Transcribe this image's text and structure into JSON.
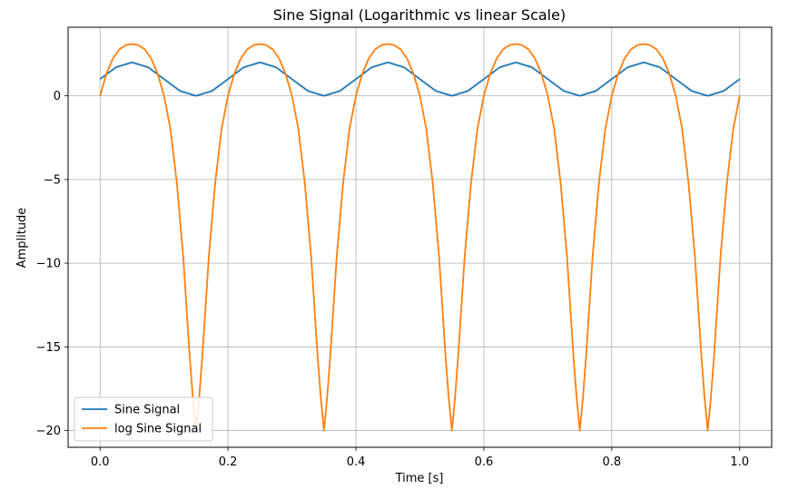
{
  "chart_data": {
    "type": "line",
    "title": "Sine Signal (Logarithmic vs linear Scale)",
    "xlabel": "Time [s]",
    "ylabel": "Amplitude",
    "xlim": [
      -0.05,
      1.05
    ],
    "ylim": [
      -21,
      4.1
    ],
    "xticks": [
      0.0,
      0.2,
      0.4,
      0.6,
      0.8,
      1.0
    ],
    "xtick_labels": [
      "0.0",
      "0.2",
      "0.4",
      "0.6",
      "0.8",
      "1.0"
    ],
    "yticks": [
      0,
      -5,
      -10,
      -15,
      -20
    ],
    "ytick_labels": [
      "0",
      "−5",
      "−10",
      "−15",
      "−20"
    ],
    "grid": true,
    "legend": {
      "position": "lower-left",
      "entries": [
        "Sine Signal",
        "log Sine Signal"
      ]
    },
    "series": [
      {
        "name": "Sine Signal",
        "color": "#1f77b4",
        "x": [
          0.0,
          0.025,
          0.05,
          0.075,
          0.1,
          0.125,
          0.15,
          0.175,
          0.2,
          0.225,
          0.25,
          0.275,
          0.3,
          0.325,
          0.35,
          0.375,
          0.4,
          0.425,
          0.45,
          0.475,
          0.5,
          0.525,
          0.55,
          0.575,
          0.6,
          0.625,
          0.65,
          0.675,
          0.7,
          0.725,
          0.75,
          0.775,
          0.8,
          0.825,
          0.85,
          0.875,
          0.9,
          0.925,
          0.95,
          0.975,
          1.0
        ],
        "y": [
          1.0,
          1.71,
          2.0,
          1.71,
          1.0,
          0.29,
          0.0,
          0.29,
          1.0,
          1.71,
          2.0,
          1.71,
          1.0,
          0.29,
          0.0,
          0.29,
          1.0,
          1.71,
          2.0,
          1.71,
          1.0,
          0.29,
          0.0,
          0.29,
          1.0,
          1.71,
          2.0,
          1.71,
          1.0,
          0.29,
          0.0,
          0.29,
          1.0,
          1.71,
          2.0,
          1.71,
          1.0,
          0.29,
          0.0,
          0.29,
          1.0
        ]
      },
      {
        "name": "log Sine Signal",
        "color": "#ff7f0e",
        "x": [
          0.0,
          0.01,
          0.02,
          0.03,
          0.04,
          0.05,
          0.06,
          0.07,
          0.08,
          0.09,
          0.1,
          0.11,
          0.12,
          0.13,
          0.14,
          0.145,
          0.15,
          0.155,
          0.16,
          0.17,
          0.18,
          0.19,
          0.2,
          0.21,
          0.22,
          0.23,
          0.24,
          0.25,
          0.26,
          0.27,
          0.28,
          0.29,
          0.3,
          0.31,
          0.32,
          0.33,
          0.34,
          0.345,
          0.35,
          0.355,
          0.36,
          0.37,
          0.38,
          0.39,
          0.4,
          0.41,
          0.42,
          0.43,
          0.44,
          0.45,
          0.46,
          0.47,
          0.48,
          0.49,
          0.5,
          0.51,
          0.52,
          0.53,
          0.54,
          0.545,
          0.55,
          0.555,
          0.56,
          0.57,
          0.58,
          0.59,
          0.6,
          0.61,
          0.62,
          0.63,
          0.64,
          0.65,
          0.66,
          0.67,
          0.68,
          0.69,
          0.7,
          0.71,
          0.72,
          0.73,
          0.74,
          0.745,
          0.75,
          0.755,
          0.76,
          0.77,
          0.78,
          0.79,
          0.8,
          0.81,
          0.82,
          0.83,
          0.84,
          0.85,
          0.86,
          0.87,
          0.88,
          0.89,
          0.9,
          0.91,
          0.92,
          0.93,
          0.94,
          0.945,
          0.95,
          0.955,
          0.96,
          0.97,
          0.98,
          0.99,
          1.0
        ],
        "y": [
          0.0,
          1.32,
          2.23,
          2.77,
          3.03,
          3.1,
          3.03,
          2.77,
          2.23,
          1.32,
          0.0,
          -1.97,
          -5.19,
          -9.61,
          -15.5,
          -18.0,
          -20.0,
          -18.0,
          -15.5,
          -9.61,
          -5.19,
          -1.97,
          0.0,
          1.32,
          2.23,
          2.77,
          3.03,
          3.1,
          3.03,
          2.77,
          2.23,
          1.32,
          0.0,
          -1.97,
          -5.19,
          -9.61,
          -15.5,
          -18.0,
          -20.0,
          -18.0,
          -15.5,
          -9.61,
          -5.19,
          -1.97,
          0.0,
          1.32,
          2.23,
          2.77,
          3.03,
          3.1,
          3.03,
          2.77,
          2.23,
          1.32,
          0.0,
          -1.97,
          -5.19,
          -9.61,
          -15.5,
          -18.0,
          -20.0,
          -18.0,
          -15.5,
          -9.61,
          -5.19,
          -1.97,
          0.0,
          1.32,
          2.23,
          2.77,
          3.03,
          3.1,
          3.03,
          2.77,
          2.23,
          1.32,
          0.0,
          -1.97,
          -5.19,
          -9.61,
          -15.5,
          -18.0,
          -20.0,
          -18.0,
          -15.5,
          -9.61,
          -5.19,
          -1.97,
          0.0,
          1.32,
          2.23,
          2.77,
          3.03,
          3.1,
          3.03,
          2.77,
          2.23,
          1.32,
          0.0,
          -1.97,
          -5.19,
          -9.61,
          -15.5,
          -18.0,
          -20.0,
          -18.0,
          -15.5,
          -9.61,
          -5.19,
          -1.97,
          0.0
        ]
      }
    ]
  }
}
